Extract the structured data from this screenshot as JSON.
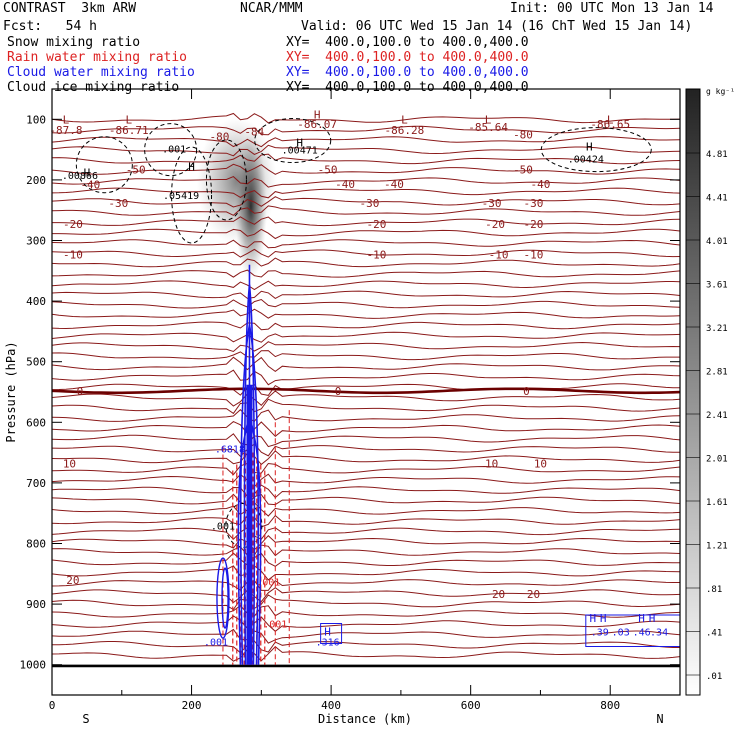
{
  "header": {
    "model": "CONTRAST  3km ARW",
    "center": "NCAR/MMM",
    "init": "Init: 00 UTC Mon 13 Jan 14",
    "fcst": "Fcst:   54 h",
    "valid": "Valid: 06 UTC Wed 15 Jan 14 (16 ChT Wed 15 Jan 14)"
  },
  "fields": [
    {
      "label": "Snow mixing ratio",
      "xy": "XY=  400.0,100.0 to 400.0,400.0",
      "color": "#000000"
    },
    {
      "label": "Rain water mixing ratio",
      "xy": "XY=  400.0,100.0 to 400.0,400.0",
      "color": "#dd2222"
    },
    {
      "label": "Cloud water mixing ratio",
      "xy": "XY=  400.0,100.0 to 400.0,400.0",
      "color": "#1a1ae6"
    },
    {
      "label": "Cloud ice mixing ratio",
      "xy": "XY=  400.0,100.0 to 400.0,400.0",
      "color": "#000000"
    }
  ],
  "chart_data": {
    "type": "cross-section",
    "xlabel": "Distance (km)",
    "ylabel": "Pressure (hPa)",
    "xlim": [
      0,
      900
    ],
    "ylim": [
      1050,
      50
    ],
    "xticks": [
      "0",
      "200",
      "400",
      "600",
      "800"
    ],
    "xtick_values": [
      0,
      200,
      400,
      600,
      800
    ],
    "yticks": [
      "100",
      "200",
      "300",
      "400",
      "500",
      "600",
      "700",
      "800",
      "900",
      "1000"
    ],
    "ytick_values": [
      100,
      200,
      300,
      400,
      500,
      600,
      700,
      800,
      900,
      1000
    ],
    "end_labels": {
      "left": "S",
      "right": "N"
    },
    "colorbar": {
      "unit": "g kg⁻¹",
      "labels": [
        "4.81",
        "4.41",
        "4.01",
        "3.61",
        "3.21",
        "2.81",
        "2.41",
        "2.01",
        "1.61",
        "1.21",
        ".81",
        ".41",
        ".01"
      ]
    },
    "temperature_isotherms": [
      {
        "label": "-80",
        "p": 125,
        "x": [
          0,
          900
        ]
      },
      {
        "label": "-50",
        "p": 180,
        "x": [
          0,
          900
        ]
      },
      {
        "label": "-40",
        "p": 205,
        "x": [
          0,
          900
        ]
      },
      {
        "label": "-30",
        "p": 235,
        "x": [
          0,
          900
        ]
      },
      {
        "label": "-20",
        "p": 270,
        "x": [
          0,
          900
        ]
      },
      {
        "label": "-10",
        "p": 320,
        "x": [
          0,
          900
        ]
      },
      {
        "label": "0",
        "p": 545,
        "x": [
          0,
          900
        ]
      },
      {
        "label": "10",
        "p": 665,
        "x": [
          0,
          900
        ]
      },
      {
        "label": "20",
        "p": 860,
        "x": [
          0,
          900
        ]
      }
    ],
    "temperature_labels": [
      {
        "text": "-87.8",
        "x": 20,
        "p": 118
      },
      {
        "text": "-86.71",
        "x": 110,
        "p": 118
      },
      {
        "text": "-86.07",
        "x": 380,
        "p": 108
      },
      {
        "text": "-86.28",
        "x": 505,
        "p": 118
      },
      {
        "text": "-85.64",
        "x": 625,
        "p": 113
      },
      {
        "text": "-86.65",
        "x": 800,
        "p": 108
      },
      {
        "text": "-80",
        "x": 240,
        "p": 128
      },
      {
        "text": "-84",
        "x": 290,
        "p": 120
      },
      {
        "text": "-80",
        "x": 675,
        "p": 125
      },
      {
        "text": "-50",
        "x": 120,
        "p": 183
      },
      {
        "text": "-50",
        "x": 395,
        "p": 183
      },
      {
        "text": "-50",
        "x": 675,
        "p": 183
      },
      {
        "text": "-40",
        "x": 55,
        "p": 208
      },
      {
        "text": "-40",
        "x": 420,
        "p": 207
      },
      {
        "text": "-40",
        "x": 490,
        "p": 207
      },
      {
        "text": "-40",
        "x": 700,
        "p": 207
      },
      {
        "text": "-30",
        "x": 95,
        "p": 238
      },
      {
        "text": "-30",
        "x": 455,
        "p": 238
      },
      {
        "text": "-30",
        "x": 630,
        "p": 238
      },
      {
        "text": "-30",
        "x": 690,
        "p": 238
      },
      {
        "text": "-20",
        "x": 30,
        "p": 273
      },
      {
        "text": "-20",
        "x": 465,
        "p": 273
      },
      {
        "text": "-20",
        "x": 635,
        "p": 273
      },
      {
        "text": "-20",
        "x": 690,
        "p": 273
      },
      {
        "text": "-10",
        "x": 30,
        "p": 323
      },
      {
        "text": "-10",
        "x": 465,
        "p": 323
      },
      {
        "text": "-10",
        "x": 640,
        "p": 323
      },
      {
        "text": "-10",
        "x": 690,
        "p": 323
      },
      {
        "text": "0",
        "x": 40,
        "p": 548
      },
      {
        "text": "0",
        "x": 410,
        "p": 548
      },
      {
        "text": "0",
        "x": 680,
        "p": 548
      },
      {
        "text": "10",
        "x": 25,
        "p": 668
      },
      {
        "text": "10",
        "x": 630,
        "p": 668
      },
      {
        "text": "10",
        "x": 700,
        "p": 668
      },
      {
        "text": "20",
        "x": 30,
        "p": 860
      },
      {
        "text": "20",
        "x": 640,
        "p": 883
      },
      {
        "text": "20",
        "x": 690,
        "p": 883
      }
    ],
    "low_markers": [
      {
        "text": "L",
        "x": 20,
        "p": 100
      },
      {
        "text": "L",
        "x": 110,
        "p": 100
      },
      {
        "text": "L",
        "x": 505,
        "p": 100
      },
      {
        "text": "L",
        "x": 625,
        "p": 100
      },
      {
        "text": "L",
        "x": 800,
        "p": 100
      }
    ],
    "high_markers": [
      {
        "text": "H",
        "x": 380,
        "p": 92,
        "color": "#8b1a1a"
      },
      {
        "text": "H",
        "x": 355,
        "p": 138,
        "color": "#000000"
      },
      {
        "text": "H",
        "x": 50,
        "p": 188,
        "color": "#000000"
      },
      {
        "text": "H",
        "x": 200,
        "p": 178,
        "color": "#000000"
      },
      {
        "text": "H",
        "x": 770,
        "p": 145,
        "color": "#000000"
      },
      {
        "text": "H",
        "x": 395,
        "p": 945,
        "color": "#1a1ae6"
      },
      {
        "text": "H",
        "x": 775,
        "p": 923,
        "color": "#1a1ae6"
      },
      {
        "text": "H",
        "x": 790,
        "p": 923,
        "color": "#1a1ae6"
      },
      {
        "text": "H",
        "x": 845,
        "p": 923,
        "color": "#1a1ae6"
      },
      {
        "text": "H",
        "x": 860,
        "p": 923,
        "color": "#1a1ae6"
      }
    ],
    "contour_labels": [
      {
        "text": ".001",
        "x": 175,
        "p": 148,
        "color": "#000000"
      },
      {
        "text": ".00471",
        "x": 355,
        "p": 150,
        "color": "#000000"
      },
      {
        "text": ".00866",
        "x": 40,
        "p": 192,
        "color": "#000000"
      },
      {
        "text": ".05419",
        "x": 185,
        "p": 225,
        "color": "#000000"
      },
      {
        "text": ".00424",
        "x": 765,
        "p": 165,
        "color": "#000000"
      },
      {
        "text": ".6818",
        "x": 255,
        "p": 643,
        "color": "#1a1ae6"
      },
      {
        "text": ".001",
        "x": 245,
        "p": 770,
        "color": "#000000"
      },
      {
        "text": ".001",
        "x": 310,
        "p": 863,
        "color": "#dd2222"
      },
      {
        "text": ".001",
        "x": 320,
        "p": 932,
        "color": "#dd2222"
      },
      {
        "text": ".001",
        "x": 235,
        "p": 962,
        "color": "#1a1ae6"
      },
      {
        "text": ".316",
        "x": 395,
        "p": 962,
        "color": "#1a1ae6"
      },
      {
        "text": ".39",
        "x": 785,
        "p": 945,
        "color": "#1a1ae6"
      },
      {
        "text": ".03",
        "x": 815,
        "p": 945,
        "color": "#1a1ae6"
      },
      {
        "text": ".46",
        "x": 845,
        "p": 945,
        "color": "#1a1ae6"
      },
      {
        "text": ".34",
        "x": 870,
        "p": 945,
        "color": "#1a1ae6"
      }
    ],
    "shading_plume": {
      "description": "grey shading for snow mixing ratio",
      "x_center": 285,
      "p_range": [
        130,
        340
      ]
    },
    "cloud_water_column": {
      "x_center": 283,
      "p_range": [
        340,
        1000
      ]
    },
    "rain_column": {
      "x_center": 282,
      "p_range": [
        640,
        1000
      ]
    }
  }
}
